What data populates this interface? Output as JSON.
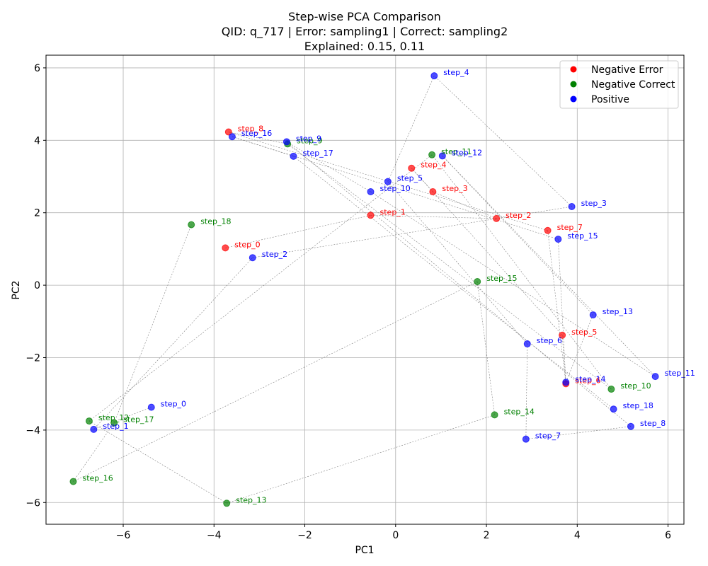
{
  "chart_data": {
    "type": "scatter",
    "title_lines": [
      "Step-wise PCA Comparison",
      "QID: q_717 | Error: sampling1 | Correct: sampling2",
      "Explained: 0.15, 0.11"
    ],
    "xlabel": "PC1",
    "ylabel": "PC2",
    "xlim": [
      -7.7,
      6.35
    ],
    "ylim": [
      -6.6,
      6.35
    ],
    "xticks": [
      -6,
      -4,
      -2,
      0,
      2,
      4,
      6
    ],
    "yticks": [
      -6,
      -4,
      -2,
      0,
      2,
      4,
      6
    ],
    "grid": true,
    "legend_position": "top-right",
    "colors": {
      "negative_error": "#ff0000",
      "negative_correct": "#008000",
      "positive": "#0000ff",
      "connector": "#808080"
    },
    "series": [
      {
        "name": "Negative Error",
        "color_key": "negative_error",
        "points": [
          {
            "label": "step_0",
            "x": -3.75,
            "y": 1.03
          },
          {
            "label": "step_1",
            "x": -0.55,
            "y": 1.93
          },
          {
            "label": "step_2",
            "x": 2.22,
            "y": 1.84
          },
          {
            "label": "step_3",
            "x": 0.82,
            "y": 2.58
          },
          {
            "label": "step_4",
            "x": 0.35,
            "y": 3.23
          },
          {
            "label": "step_5",
            "x": 3.67,
            "y": -1.38
          },
          {
            "label": "step_6",
            "x": 3.75,
            "y": -2.72
          },
          {
            "label": "step_7",
            "x": 3.35,
            "y": 1.51
          },
          {
            "label": "step_8",
            "x": -3.68,
            "y": 4.23
          }
        ]
      },
      {
        "name": "Negative Correct",
        "color_key": "negative_correct",
        "points": [
          {
            "label": "step_9",
            "x": -2.38,
            "y": 3.9
          },
          {
            "label": "step_10",
            "x": 4.75,
            "y": -2.87
          },
          {
            "label": "step_11",
            "x": 0.8,
            "y": 3.6
          },
          {
            "label": "step_12",
            "x": -6.75,
            "y": -3.75
          },
          {
            "label": "step_13",
            "x": -3.72,
            "y": -6.02
          },
          {
            "label": "step_14",
            "x": 2.18,
            "y": -3.58
          },
          {
            "label": "step_15",
            "x": 1.8,
            "y": 0.1
          },
          {
            "label": "step_16",
            "x": -7.1,
            "y": -5.42
          },
          {
            "label": "step_17",
            "x": -6.2,
            "y": -3.8
          },
          {
            "label": "step_18",
            "x": -4.5,
            "y": 1.67
          }
        ]
      },
      {
        "name": "Positive",
        "color_key": "positive",
        "points": [
          {
            "label": "step_0",
            "x": -5.38,
            "y": -3.37
          },
          {
            "label": "step_1",
            "x": -6.65,
            "y": -3.98
          },
          {
            "label": "step_2",
            "x": -3.15,
            "y": 0.76
          },
          {
            "label": "step_3",
            "x": 3.88,
            "y": 2.17
          },
          {
            "label": "step_4",
            "x": 0.85,
            "y": 5.78
          },
          {
            "label": "step_5",
            "x": -0.17,
            "y": 2.86
          },
          {
            "label": "step_6",
            "x": 2.9,
            "y": -1.62
          },
          {
            "label": "step_7",
            "x": 2.87,
            "y": -4.25
          },
          {
            "label": "step_8",
            "x": 5.18,
            "y": -3.9
          },
          {
            "label": "step_9",
            "x": -2.4,
            "y": 3.96
          },
          {
            "label": "step_10",
            "x": -0.55,
            "y": 2.58
          },
          {
            "label": "step_11",
            "x": 5.72,
            "y": -2.52
          },
          {
            "label": "step_12",
            "x": 1.03,
            "y": 3.57
          },
          {
            "label": "step_13",
            "x": 4.35,
            "y": -0.82
          },
          {
            "label": "step_14",
            "x": 3.75,
            "y": -2.68
          },
          {
            "label": "step_15",
            "x": 3.58,
            "y": 1.27
          },
          {
            "label": "step_16",
            "x": -3.6,
            "y": 4.1
          },
          {
            "label": "step_17",
            "x": -2.25,
            "y": 3.56
          },
          {
            "label": "step_18",
            "x": 4.8,
            "y": -3.42
          }
        ]
      }
    ]
  }
}
